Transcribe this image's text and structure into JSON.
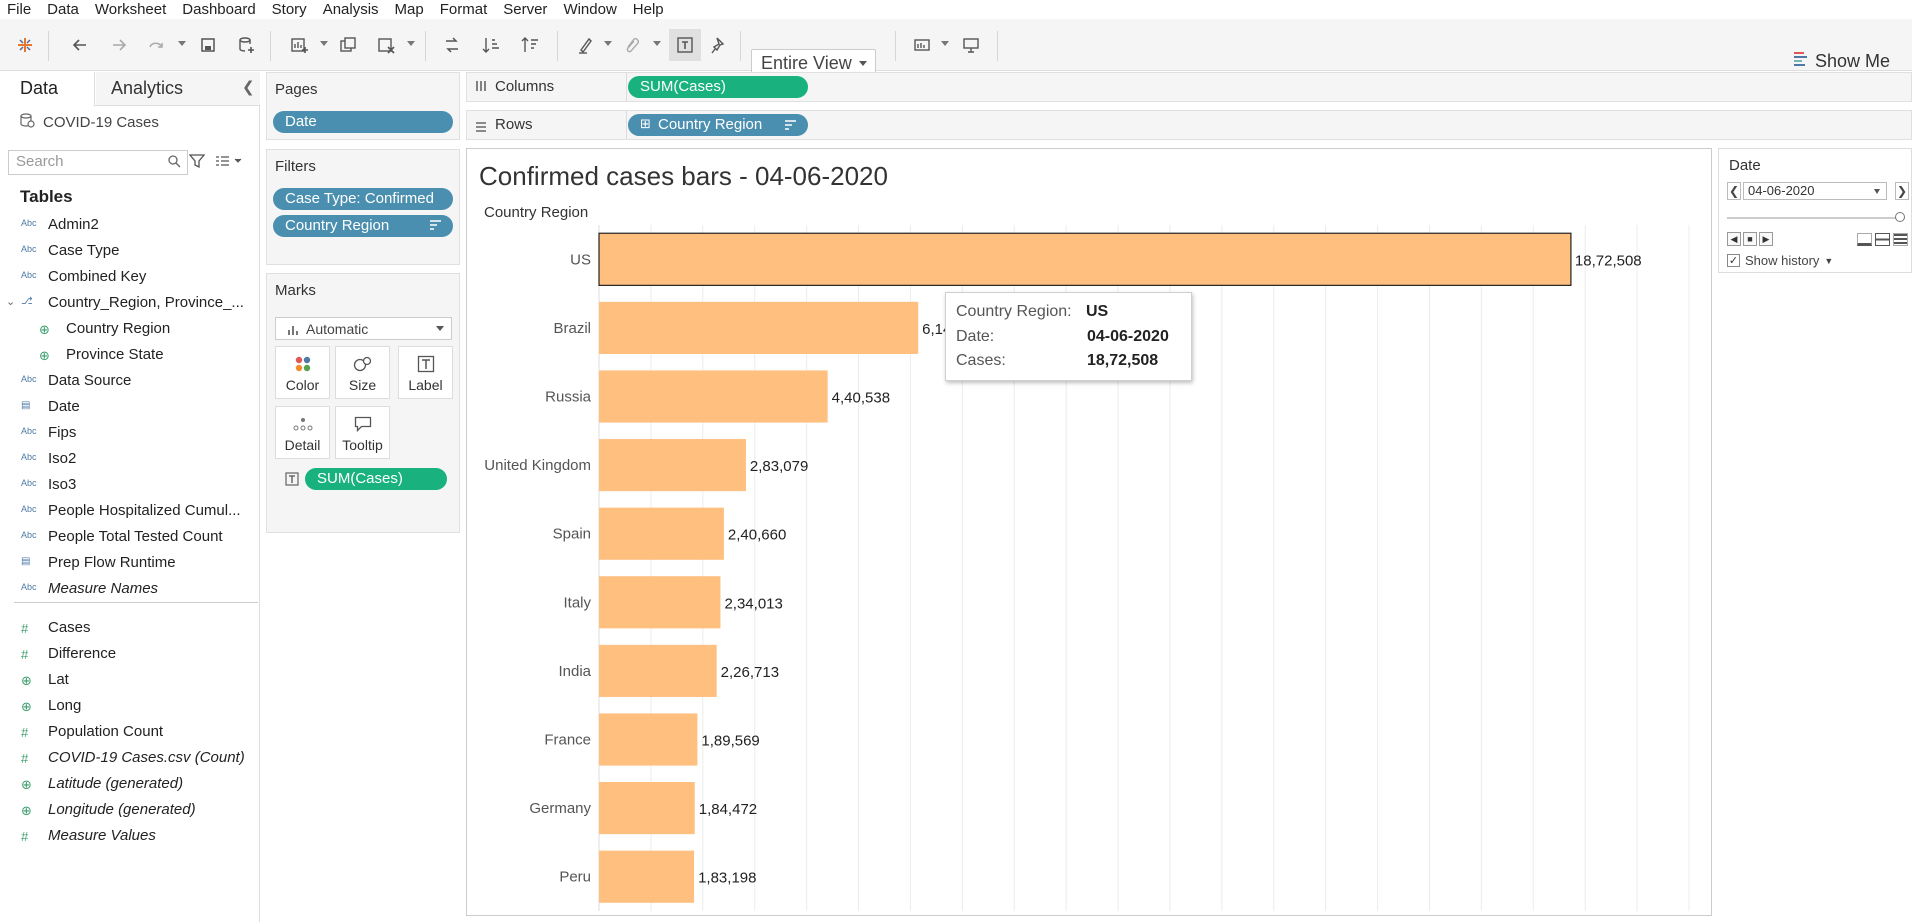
{
  "menu": [
    "File",
    "Data",
    "Worksheet",
    "Dashboard",
    "Story",
    "Analysis",
    "Map",
    "Format",
    "Server",
    "Window",
    "Help"
  ],
  "toolbar": {
    "fit_label": "Entire View",
    "show_me_label": "Show Me"
  },
  "data_pane": {
    "tab_data": "Data",
    "tab_analytics": "Analytics",
    "datasource": "COVID-19 Cases",
    "search_placeholder": "Search",
    "tables_heading": "Tables",
    "dimensions": [
      {
        "icon": "Abc",
        "label": "Admin2"
      },
      {
        "icon": "Abc",
        "label": "Case Type"
      },
      {
        "icon": "Abc",
        "label": "Combined Key"
      },
      {
        "icon": "hierarchy",
        "label": "Country_Region, Province_..."
      },
      {
        "icon": "globe",
        "label": "Country Region"
      },
      {
        "icon": "globe",
        "label": "Province State"
      },
      {
        "icon": "Abc",
        "label": "Data Source"
      },
      {
        "icon": "calendar",
        "label": "Date"
      },
      {
        "icon": "Abc",
        "label": "Fips"
      },
      {
        "icon": "Abc",
        "label": "Iso2"
      },
      {
        "icon": "Abc",
        "label": "Iso3"
      },
      {
        "icon": "Abc",
        "label": "People Hospitalized Cumul..."
      },
      {
        "icon": "Abc",
        "label": "People Total Tested Count"
      },
      {
        "icon": "calendar-clock",
        "label": "Prep Flow Runtime"
      },
      {
        "icon": "Abc",
        "label": "Measure Names"
      }
    ],
    "measures": [
      {
        "icon": "#",
        "label": "Cases"
      },
      {
        "icon": "#",
        "label": "Difference"
      },
      {
        "icon": "globe",
        "label": "Lat"
      },
      {
        "icon": "globe",
        "label": "Long"
      },
      {
        "icon": "#",
        "label": "Population Count"
      },
      {
        "icon": "#",
        "label": "COVID-19 Cases.csv (Count)"
      },
      {
        "icon": "globe",
        "label": "Latitude (generated)"
      },
      {
        "icon": "globe",
        "label": "Longitude (generated)"
      },
      {
        "icon": "#",
        "label": "Measure Values"
      }
    ]
  },
  "pages": {
    "heading": "Pages",
    "pill": "Date"
  },
  "filters": {
    "heading": "Filters",
    "pills": [
      "Case Type: Confirmed",
      "Country Region"
    ]
  },
  "marks": {
    "heading": "Marks",
    "type": "Automatic",
    "buttons": [
      "Color",
      "Size",
      "Label",
      "Detail",
      "Tooltip"
    ],
    "pill": "SUM(Cases)"
  },
  "columns": {
    "heading": "Columns",
    "pill": "SUM(Cases)"
  },
  "rows": {
    "heading": "Rows",
    "pill": "Country Region"
  },
  "viz": {
    "title": "Confirmed cases bars - 04-06-2020",
    "row_header": "Country Region"
  },
  "chart_data": {
    "type": "bar",
    "orientation": "horizontal",
    "title": "Confirmed cases bars - 04-06-2020",
    "categories": [
      "US",
      "Brazil",
      "Russia",
      "United Kingdom",
      "Spain",
      "Italy",
      "India",
      "France",
      "Germany",
      "Peru"
    ],
    "values": [
      1872508,
      614941,
      440538,
      283079,
      240660,
      234013,
      226713,
      189569,
      184472,
      183198
    ],
    "labels": [
      "18,72,508",
      "6,14,941",
      "4,40,538",
      "2,83,079",
      "2,40,660",
      "2,34,013",
      "2,26,713",
      "1,89,569",
      "1,84,472",
      "1,83,198"
    ],
    "xlim": [
      0,
      2100000
    ],
    "bar_color": "#ffbf7f",
    "selected": "US",
    "grid": true
  },
  "tooltip": {
    "k1": "Country Region:",
    "v1": "US",
    "k2": "Date:",
    "v2": "04-06-2020",
    "k3": "Cases:",
    "v3": "18,72,508"
  },
  "page_control": {
    "heading": "Date",
    "value": "04-06-2020",
    "show_history": "Show history"
  },
  "colors": {
    "pill_blue": "#4b8fb0",
    "pill_green": "#19b27e",
    "bar": "#ffbf7f"
  }
}
